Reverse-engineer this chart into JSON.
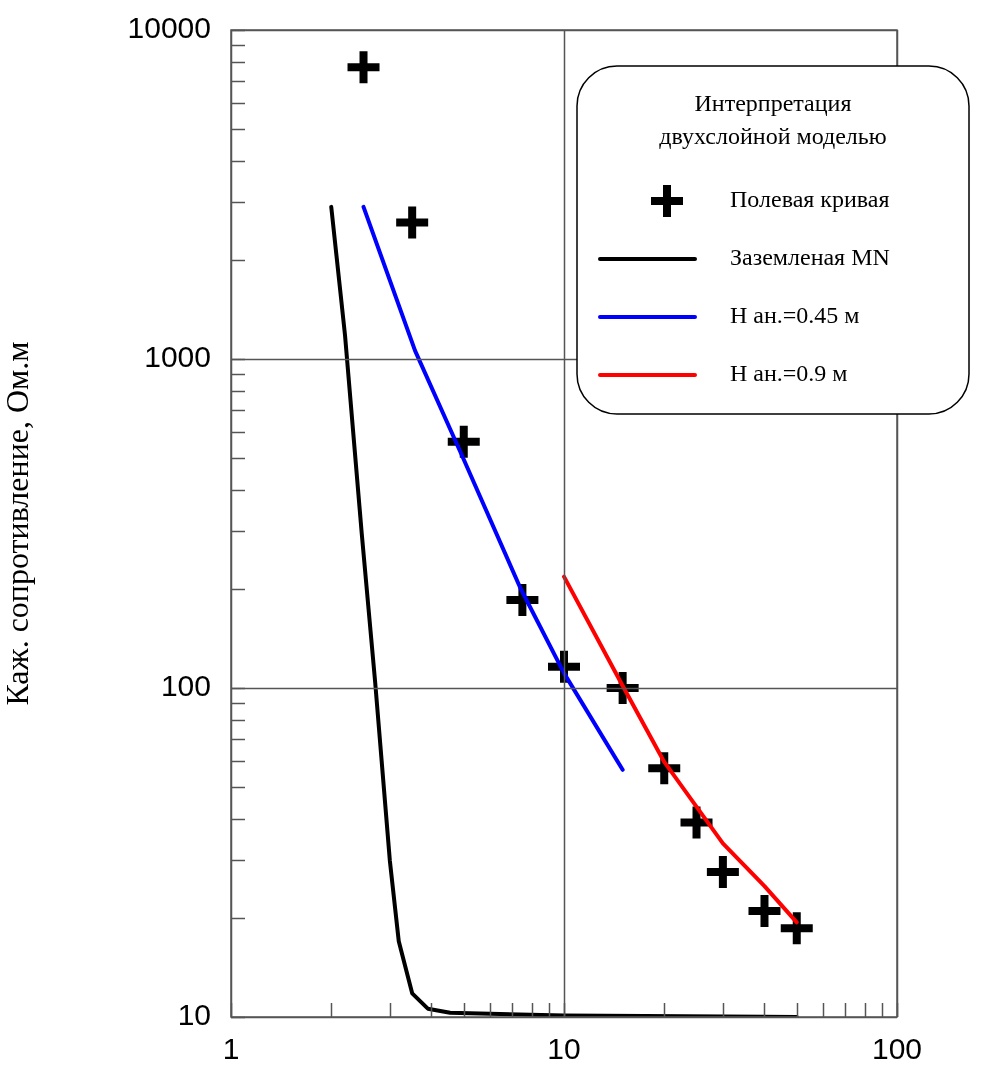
{
  "chart_data": {
    "type": "line",
    "ylabel": "Каж. сопротивление, Ом.м",
    "legend_title": "Интерпретация\nдвухслойной моделью",
    "legend": "top right",
    "grid": true,
    "log": "xy",
    "marker": "none",
    "xlim": [
      1,
      100
    ],
    "ylim": [
      10,
      10000
    ],
    "xticks": [
      1,
      {
        "value": 2,
        "label": null
      },
      {
        "value": 3,
        "label": null
      },
      {
        "value": 4,
        "label": null
      },
      {
        "value": 5,
        "label": null
      },
      {
        "value": 6,
        "label": null
      },
      {
        "value": 7,
        "label": null
      },
      {
        "value": 8,
        "label": null
      },
      {
        "value": 9,
        "label": null
      },
      10,
      {
        "value": 20,
        "label": null
      },
      {
        "value": 30,
        "label": null
      },
      {
        "value": 40,
        "label": null
      },
      {
        "value": 50,
        "label": null
      },
      {
        "value": 60,
        "label": null
      },
      {
        "value": 70,
        "label": null
      },
      {
        "value": 80,
        "label": null
      },
      {
        "value": 90,
        "label": null
      },
      100
    ],
    "yticks": [
      10,
      {
        "value": 20,
        "label": null
      },
      {
        "value": 30,
        "label": null
      },
      {
        "value": 40,
        "label": null
      },
      {
        "value": 50,
        "label": null
      },
      {
        "value": 60,
        "label": null
      },
      {
        "value": 70,
        "label": null
      },
      {
        "value": 80,
        "label": null
      },
      {
        "value": 90,
        "label": null
      },
      100,
      {
        "value": 200,
        "label": null
      },
      {
        "value": 300,
        "label": null
      },
      {
        "value": 400,
        "label": null
      },
      {
        "value": 500,
        "label": null
      },
      {
        "value": 600,
        "label": null
      },
      {
        "value": 700,
        "label": null
      },
      {
        "value": 800,
        "label": null
      },
      {
        "value": 900,
        "label": null
      },
      1000,
      {
        "value": 2000,
        "label": null
      },
      {
        "value": 3000,
        "label": null
      },
      {
        "value": 4000,
        "label": null
      },
      {
        "value": 5000,
        "label": null
      },
      {
        "value": 6000,
        "label": null
      },
      {
        "value": 7000,
        "label": null
      },
      {
        "value": 8000,
        "label": null
      },
      {
        "value": 9000,
        "label": null
      },
      10000
    ],
    "series": [
      {
        "type": "scatter",
        "marker": "cross",
        "name": "Полевая кривая",
        "color": "#000000",
        "x": [
          2.5,
          3.5,
          5,
          7.5,
          10,
          15,
          20,
          25,
          30,
          40,
          50
        ],
        "values": [
          7700,
          2600,
          560,
          185,
          116,
          100,
          57,
          39,
          27.6,
          21,
          18.6
        ]
      },
      {
        "name": "Заземленая MN",
        "color": "#000000",
        "x": [
          2,
          2.2,
          2.47,
          2.71,
          3,
          3.19,
          3.5,
          3.9,
          4.55,
          10,
          50
        ],
        "values": [
          2900,
          1180,
          294,
          104,
          29.8,
          17,
          11.8,
          10.6,
          10.3,
          10.1,
          10
        ]
      },
      {
        "name": "H ан.=0.45 м",
        "color": "#0000ff",
        "x": [
          2.5,
          3.57,
          5,
          7.4,
          10,
          15
        ],
        "values": [
          2900,
          1060,
          495,
          201,
          111,
          56.4
        ]
      },
      {
        "name": "H ан.=0.9 м",
        "color": "#ff0000",
        "x": [
          10,
          15,
          20,
          30,
          40,
          50
        ],
        "values": [
          218,
          101.6,
          59.6,
          33.7,
          25,
          19.4
        ]
      }
    ]
  }
}
